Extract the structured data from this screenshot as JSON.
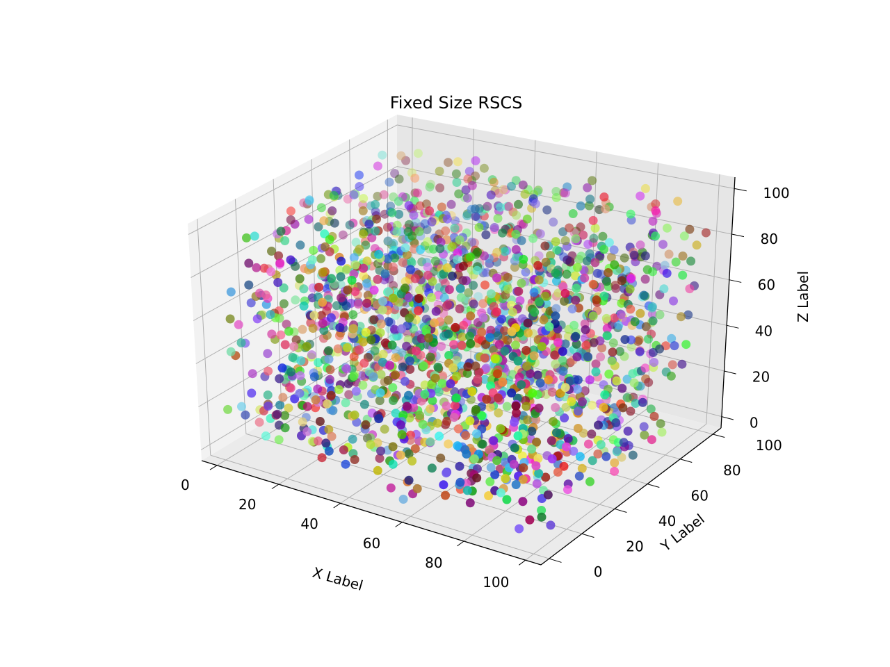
{
  "chart_data": {
    "type": "scatter",
    "projection": "3d",
    "title": "Fixed Size RSCS",
    "xlabel": "X Label",
    "ylabel": "Y Label",
    "zlabel": "Z Label",
    "xlim": [
      -5,
      105
    ],
    "ylim": [
      -5,
      105
    ],
    "zlim": [
      -5,
      105
    ],
    "xticks": [
      "0",
      "20",
      "40",
      "60",
      "80",
      "100"
    ],
    "yticks": [
      "0",
      "20",
      "40",
      "60",
      "80",
      "100"
    ],
    "zticks": [
      "0",
      "20",
      "40",
      "60",
      "80",
      "100"
    ],
    "grid": true,
    "point_size": "fixed",
    "point_count": 2000,
    "distribution": "uniform random over [0, 100] on each axis, one random colour per point",
    "sample_points": [
      {
        "x": 2,
        "y": 40,
        "z": 30,
        "color": "#2ca02c"
      },
      {
        "x": 8,
        "y": 30,
        "z": 20,
        "color": "#2ca02c"
      },
      {
        "x": 15,
        "y": 60,
        "z": 70,
        "color": "#d62cb0"
      },
      {
        "x": 20,
        "y": 10,
        "z": 45,
        "color": "#3fd0d0"
      },
      {
        "x": 35,
        "y": 20,
        "z": 10,
        "color": "#6b7a4d"
      },
      {
        "x": 45,
        "y": 50,
        "z": 60,
        "color": "#4b0fb0"
      },
      {
        "x": 55,
        "y": 70,
        "z": 85,
        "color": "#e07a7a"
      },
      {
        "x": 60,
        "y": 40,
        "z": 40,
        "color": "#4b3a2a"
      },
      {
        "x": 70,
        "y": 90,
        "z": 90,
        "color": "#2f3f2a"
      },
      {
        "x": 80,
        "y": 30,
        "z": 15,
        "color": "#f2f040"
      },
      {
        "x": 90,
        "y": 80,
        "z": 50,
        "color": "#2a7df0"
      },
      {
        "x": 95,
        "y": 60,
        "z": 10,
        "color": "#2aff70"
      }
    ]
  }
}
